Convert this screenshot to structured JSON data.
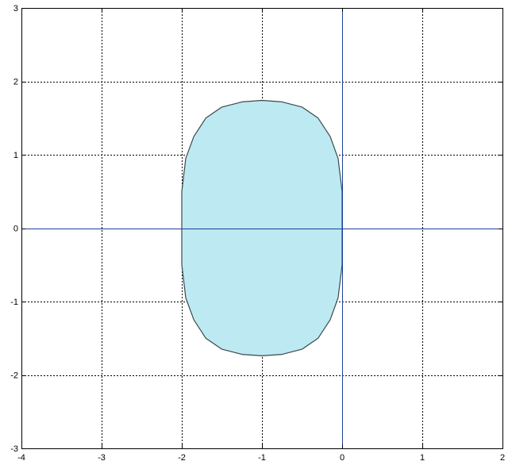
{
  "chart_data": {
    "type": "area",
    "title": "",
    "xlabel": "",
    "ylabel": "",
    "xlim": [
      -4,
      2
    ],
    "ylim": [
      -3,
      3
    ],
    "x_ticks": [
      "-4",
      "-3",
      "-2",
      "-1",
      "0",
      "1",
      "2"
    ],
    "y_ticks": [
      "-3",
      "-2",
      "-1",
      "0",
      "1",
      "2",
      "3"
    ],
    "grid": true,
    "grid_style": "dotted",
    "colors": {
      "region_fill": "#bde9f2",
      "region_edge": "#3a4a4a",
      "axis_lines": "#1f3f9f",
      "grid": "#000000"
    },
    "region": {
      "shape": "rounded vertical band",
      "x_range": [
        -2,
        0
      ],
      "y_range": [
        -1.73,
        1.73
      ],
      "outline": [
        [
          0,
          0.5
        ],
        [
          -0.05,
          0.95
        ],
        [
          -0.15,
          1.25
        ],
        [
          -0.3,
          1.5
        ],
        [
          -0.5,
          1.65
        ],
        [
          -0.75,
          1.72
        ],
        [
          -1,
          1.74
        ],
        [
          -1.25,
          1.72
        ],
        [
          -1.5,
          1.65
        ],
        [
          -1.7,
          1.5
        ],
        [
          -1.85,
          1.25
        ],
        [
          -1.95,
          0.95
        ],
        [
          -2,
          0.5
        ],
        [
          -2,
          -0.5
        ],
        [
          -1.95,
          -0.95
        ],
        [
          -1.85,
          -1.25
        ],
        [
          -1.7,
          -1.5
        ],
        [
          -1.5,
          -1.65
        ],
        [
          -1.25,
          -1.72
        ],
        [
          -1,
          -1.74
        ],
        [
          -0.75,
          -1.72
        ],
        [
          -0.5,
          -1.65
        ],
        [
          -0.3,
          -1.5
        ],
        [
          -0.15,
          -1.25
        ],
        [
          -0.05,
          -0.95
        ],
        [
          0,
          -0.5
        ]
      ]
    },
    "reference_lines": [
      {
        "orientation": "vertical",
        "x": 0
      },
      {
        "orientation": "horizontal",
        "y": 0
      }
    ]
  }
}
